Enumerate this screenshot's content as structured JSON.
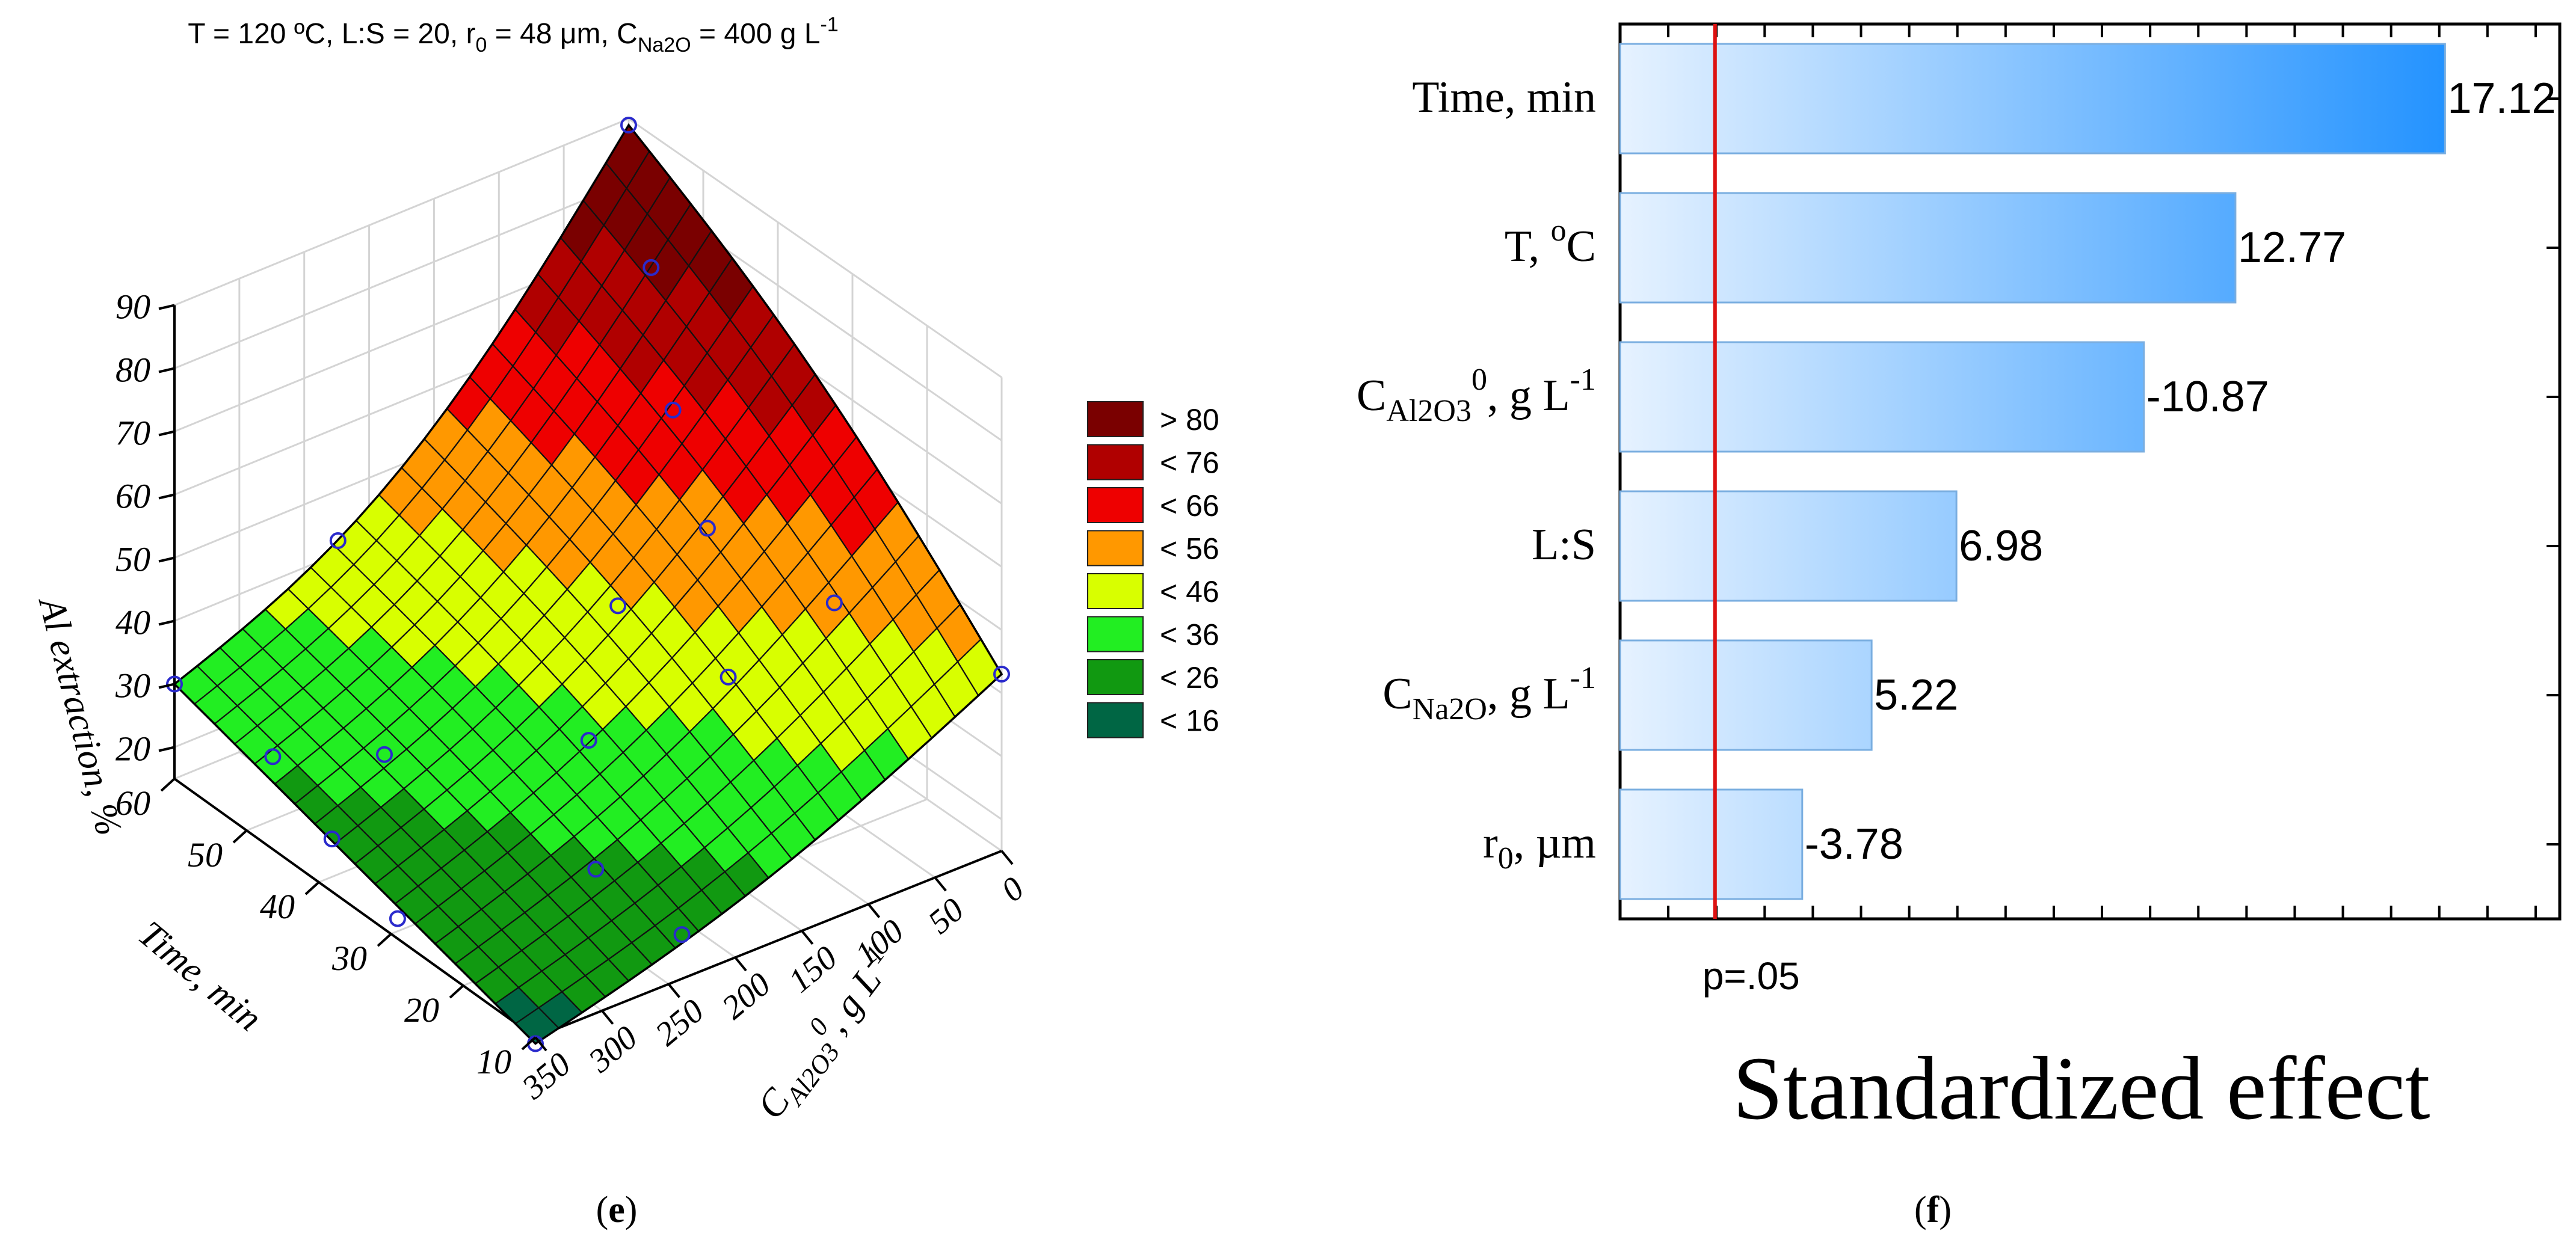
{
  "chart_data": [
    {
      "type": "surface3d",
      "panel_label": "(e)",
      "title": "T = 120 °C, L:S = 20, r0 = 48 μm, CNa2O = 400 g L-1",
      "title_parts": {
        "prefix": "T = 120 ºC, L:S = 20, r",
        "r_sub": "0",
        "mid": " = 48 μm, C",
        "c_sub": "Na2O",
        "suffix": " = 400 g L",
        "sup": "-1"
      },
      "zlabel": "Al extraction, %",
      "xlabel": "Time, min",
      "ylabel_parts": {
        "main": "C",
        "sub": "Al2O3",
        "sup": "0",
        "tail": ", g L",
        "tail_sup": "-1"
      },
      "x_ticks": [
        "60",
        "50",
        "40",
        "30",
        "20",
        "10"
      ],
      "y_ticks": [
        "0",
        "50",
        "100",
        "150",
        "200",
        "250",
        "300",
        "350"
      ],
      "z_ticks": [
        "20",
        "30",
        "40",
        "50",
        "60",
        "70",
        "80",
        "90"
      ],
      "x_range": [
        10,
        60
      ],
      "y_range": [
        0,
        350
      ],
      "z_range": [
        15,
        90
      ],
      "legend": [
        {
          "label": "> 80",
          "color": "#7a0000"
        },
        {
          "label": "< 76",
          "color": "#b00000"
        },
        {
          "label": "< 66",
          "color": "#ee0000"
        },
        {
          "label": "< 56",
          "color": "#ff9800"
        },
        {
          "label": "< 46",
          "color": "#d8ff00"
        },
        {
          "label": "< 36",
          "color": "#22ee22"
        },
        {
          "label": "< 26",
          "color": "#119911"
        },
        {
          "label": "< 16",
          "color": "#006644"
        }
      ],
      "corner_values": {
        "t60_c0": 89,
        "t60_c350": 30,
        "t10_c0": 43,
        "t10_c350": 14
      },
      "observed_points": [
        {
          "time": 60,
          "c": 0,
          "z": 89
        },
        {
          "time": 60,
          "c": 350,
          "z": 30
        },
        {
          "time": 10,
          "c": 0,
          "z": 43
        },
        {
          "time": 10,
          "c": 350,
          "z": 14
        },
        {
          "time": 50,
          "c": 40,
          "z": 78
        },
        {
          "time": 40,
          "c": 80,
          "z": 67
        },
        {
          "time": 30,
          "c": 110,
          "z": 59
        },
        {
          "time": 20,
          "c": 70,
          "z": 52
        },
        {
          "time": 20,
          "c": 150,
          "z": 47
        },
        {
          "time": 50,
          "c": 280,
          "z": 55
        },
        {
          "time": 40,
          "c": 300,
          "z": 31
        },
        {
          "time": 35,
          "c": 150,
          "z": 46
        },
        {
          "time": 30,
          "c": 200,
          "z": 33
        },
        {
          "time": 20,
          "c": 250,
          "z": 25
        },
        {
          "time": 50,
          "c": 330,
          "z": 25
        },
        {
          "time": 40,
          "c": 340,
          "z": 21
        },
        {
          "time": 30,
          "c": 345,
          "z": 17
        },
        {
          "time": 10,
          "c": 240,
          "z": 22
        }
      ]
    },
    {
      "type": "bar",
      "orientation": "horizontal",
      "panel_label": "(f)",
      "xlabel": "Standardized effect",
      "reference_line_label": "p=.05",
      "reference_value": 1.97,
      "xlim": [
        0,
        19.5
      ],
      "categories": [
        "Time, min",
        "T, ºC",
        "CAl2O3 0, g L-1",
        "L:S",
        "CNa2O, g L-1",
        "r0, μm"
      ],
      "category_parts": [
        {
          "main": "Time, min"
        },
        {
          "main": "T, ",
          "sup": "o",
          "tail": "C"
        },
        {
          "main": "C",
          "sub": "Al2O3",
          "sup": "0",
          "tail": ", g L",
          "tail_sup": "-1"
        },
        {
          "main": "L:S"
        },
        {
          "main": "C",
          "sub": "Na2O",
          "tail": ", g L",
          "tail_sup": "-1"
        },
        {
          "main": "r",
          "sub": "0",
          "tail": ", µm"
        }
      ],
      "values": [
        17.12,
        12.77,
        -10.87,
        6.98,
        5.22,
        -3.78
      ],
      "value_labels": [
        "17.12",
        "12.77",
        "-10.87",
        "6.98",
        "5.22",
        "-3.78"
      ],
      "colors": {
        "bar_light": "#e6f2ff",
        "bar_dark": "#1e90ff",
        "reference_line": "#dd1111"
      }
    }
  ]
}
